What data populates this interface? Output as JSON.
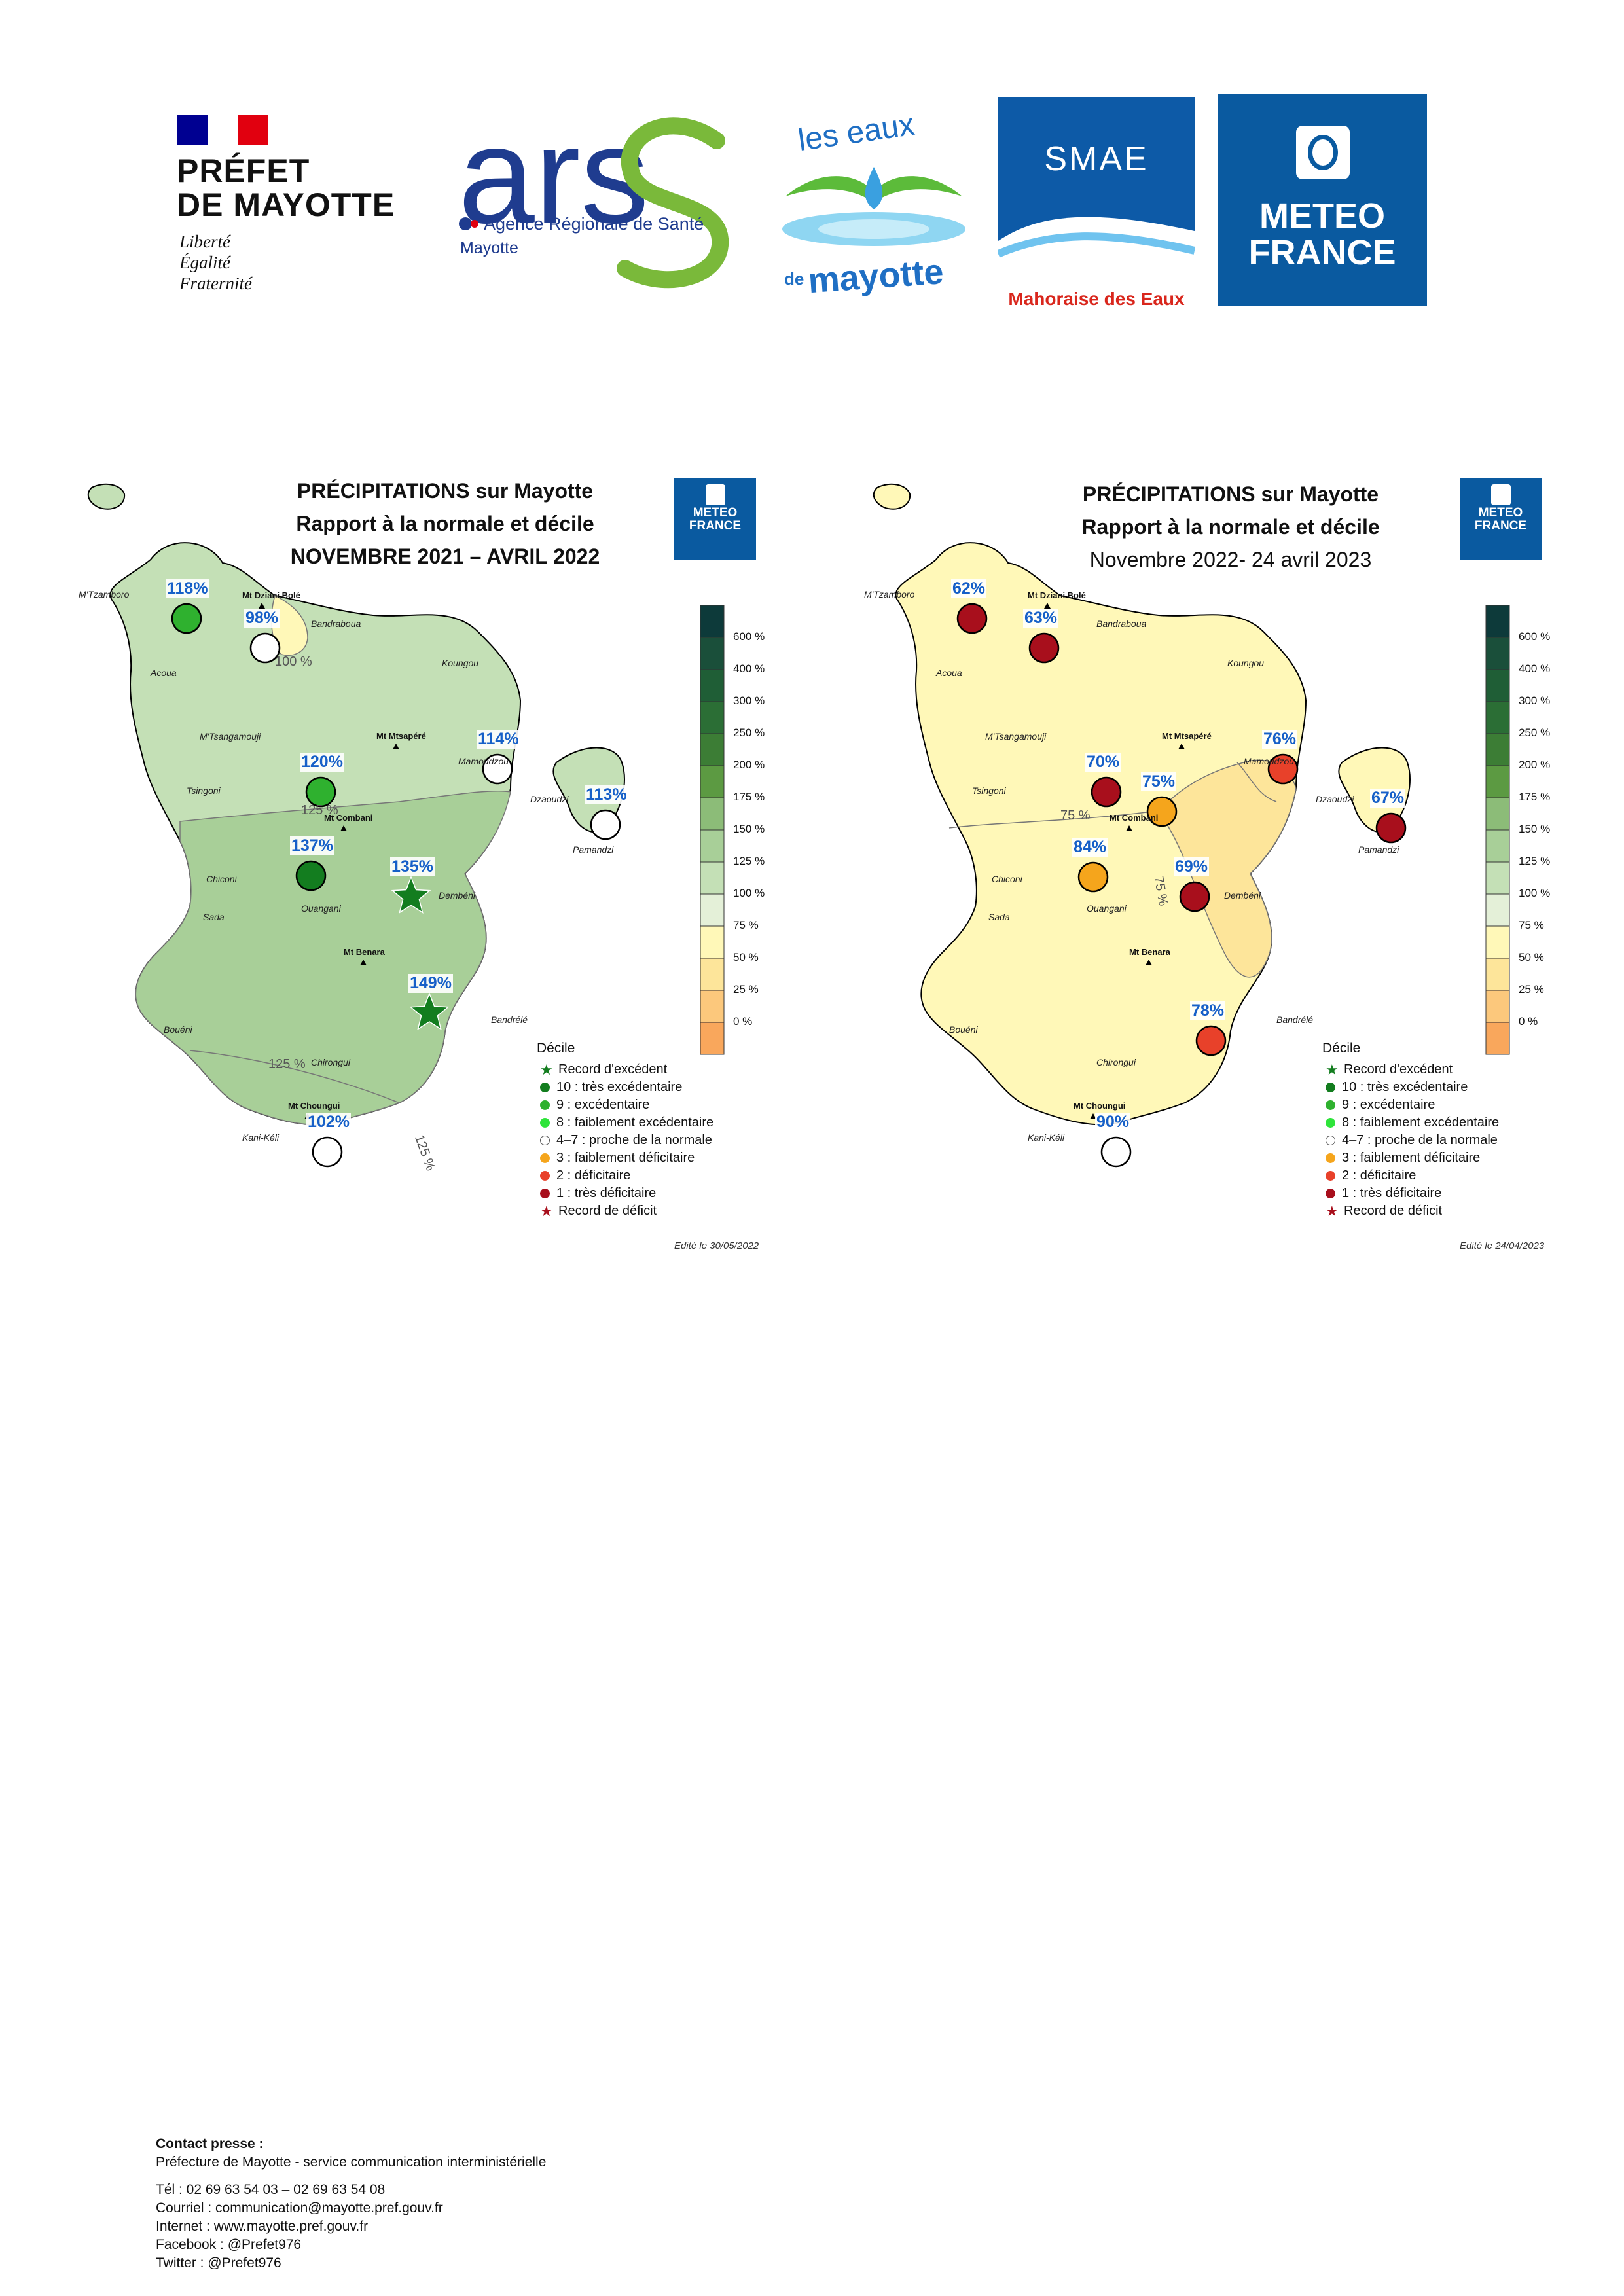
{
  "logos": {
    "prefet": {
      "line1": "PRÉFET",
      "line2": "DE MAYOTTE",
      "motto": [
        "Liberté",
        "Égalité",
        "Fraternité"
      ],
      "flag_colors": [
        "#000091",
        "#ffffff",
        "#e1000f"
      ]
    },
    "ars": {
      "letters": "ars",
      "tagline": "Agence Régionale de Santé",
      "region": "Mayotte",
      "blue": "#1f3c8f",
      "green": "#7ab93a"
    },
    "eaux": {
      "top": "les eaux",
      "bottom_prefix": "de",
      "bottom": "mayotte",
      "color": "#1f6fc4"
    },
    "smae": {
      "name": "SMAE",
      "tagline": "Mahoraise des Eaux",
      "tagline_color": "#d9261c",
      "blue": "#0d5aa7"
    },
    "meteofrance": {
      "line1": "METEO",
      "line2": "FRANCE",
      "bg": "#0a5aa0"
    }
  },
  "map_common": {
    "title_line1": "PRÉCIPITATIONS sur Mayotte",
    "title_line2": "Rapport à la normale et décile",
    "logo_line1": "METEO",
    "logo_line2": "FRANCE",
    "legend_title": "Décile",
    "legend": [
      {
        "marker": "star",
        "color": "#137d1f",
        "label": "Record d'excédent"
      },
      {
        "marker": "dot",
        "color": "#137d1f",
        "label": "10 : très excédentaire"
      },
      {
        "marker": "dot",
        "color": "#2fb12f",
        "label": "9 : excédentaire"
      },
      {
        "marker": "dot",
        "color": "#2ee43a",
        "label": "8 : faiblement excédentaire"
      },
      {
        "marker": "dot",
        "color": "#ffffff",
        "label": "4–7 : proche de la normale"
      },
      {
        "marker": "dot",
        "color": "#f5a51c",
        "label": "3 : faiblement déficitaire"
      },
      {
        "marker": "dot",
        "color": "#e8412a",
        "label": "2 : déficitaire"
      },
      {
        "marker": "dot",
        "color": "#a80f1c",
        "label": "1 : très déficitaire"
      },
      {
        "marker": "star",
        "color": "#a80f1c",
        "label": "Record de déficit"
      }
    ],
    "scale_labels": [
      "600 %",
      "400 %",
      "300 %",
      "250 %",
      "200 %",
      "175 %",
      "150 %",
      "125 %",
      "100 %",
      "75 %",
      "50 %",
      "25 %",
      "0 %"
    ],
    "scale_colors": [
      "#0d3a3a",
      "#1a4f3a",
      "#1f5e36",
      "#2b6e35",
      "#3c7d35",
      "#5c9a42",
      "#8cbc78",
      "#a8cf98",
      "#c4e0b6",
      "#e4f0d8",
      "#fff8b8",
      "#fde59a",
      "#fcc87c",
      "#f9a75c"
    ],
    "places": [
      "M'Tzamboro",
      "Bandraboua",
      "Acoua",
      "Koungou",
      "M'Tsangamouji",
      "Mamoudzou",
      "Tsingoni",
      "Dzaoudzi",
      "Pamandzi",
      "Chiconi",
      "Dembéni",
      "Sada",
      "Ouangani",
      "Bandrélé",
      "Bouéni",
      "Chirongui",
      "Kani-Kéli"
    ],
    "peaks": [
      "Mt Dziani Bolé",
      "Mt Mtsapéré",
      "Mt Combani",
      "Mt Benara",
      "Mt Choungui"
    ]
  },
  "map_left": {
    "title_line3": "NOVEMBRE 2021 – AVRIL 2022",
    "edit": "Edité le 30/05/2022",
    "land_color": "#c4e0b6",
    "zone_color": "#a8cf98",
    "north_color": "#fff8b8",
    "iso_labels": [
      "100 %",
      "125 %",
      "125 %",
      "125 %"
    ],
    "stations": [
      {
        "pct": "118%",
        "marker": "dot",
        "color": "#2fb12f"
      },
      {
        "pct": "98%",
        "marker": "dot",
        "color": "#ffffff"
      },
      {
        "pct": "114%",
        "marker": "dot",
        "color": "#ffffff"
      },
      {
        "pct": "113%",
        "marker": "dot",
        "color": "#ffffff"
      },
      {
        "pct": "120%",
        "marker": "dot",
        "color": "#2fb12f"
      },
      {
        "pct": "137%",
        "marker": "dot",
        "color": "#137d1f"
      },
      {
        "pct": "135%",
        "marker": "star",
        "color": "#137d1f"
      },
      {
        "pct": "149%",
        "marker": "star",
        "color": "#137d1f"
      },
      {
        "pct": "102%",
        "marker": "dot",
        "color": "#ffffff"
      }
    ]
  },
  "map_right": {
    "title_line3": "Novembre 2022- 24 avril 2023",
    "edit": "Edité le 24/04/2023",
    "land_color": "#fff8b8",
    "zone_color": "#fde59a",
    "iso_labels": [
      "75 %",
      "75 %"
    ],
    "stations": [
      {
        "pct": "62%",
        "marker": "dot",
        "color": "#a80f1c"
      },
      {
        "pct": "63%",
        "marker": "dot",
        "color": "#a80f1c"
      },
      {
        "pct": "76%",
        "marker": "dot",
        "color": "#e8412a"
      },
      {
        "pct": "67%",
        "marker": "dot",
        "color": "#a80f1c"
      },
      {
        "pct": "70%",
        "marker": "dot",
        "color": "#a80f1c"
      },
      {
        "pct": "75%",
        "marker": "dot",
        "color": "#f5a51c"
      },
      {
        "pct": "84%",
        "marker": "dot",
        "color": "#f5a51c"
      },
      {
        "pct": "69%",
        "marker": "dot",
        "color": "#a80f1c"
      },
      {
        "pct": "78%",
        "marker": "dot",
        "color": "#e8412a"
      },
      {
        "pct": "90%",
        "marker": "dot",
        "color": "#ffffff"
      }
    ]
  },
  "contact": {
    "heading": "Contact presse :",
    "org": "Préfecture de Mayotte - service communication interministérielle",
    "tel": "Tél : 02 69 63 54 03 – 02 69 63 54 08",
    "mail": "Courriel :  communication@mayotte.pref.gouv.fr",
    "web": "Internet : www.mayotte.pref.gouv.fr",
    "facebook": "Facebook : @Prefet976",
    "twitter": "Twitter : @Prefet976"
  }
}
